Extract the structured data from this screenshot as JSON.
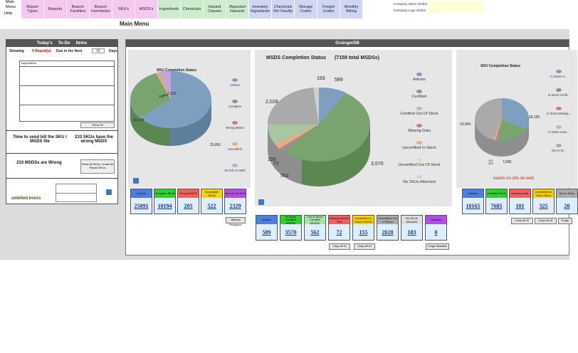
{
  "nav": {
    "main_menu": "Main Menu",
    "help": "Help",
    "tabs": [
      {
        "label": "Report Types",
        "color": "#f4c8ef"
      },
      {
        "label": "Reports",
        "color": "#f4c8ef"
      },
      {
        "label": "Branch Facilities",
        "color": "#f4c8ef"
      },
      {
        "label": "Branch Inventories",
        "color": "#f4c8ef"
      },
      {
        "label": "SKU's",
        "color": "#f4c8ef"
      },
      {
        "label": "MSDS's",
        "color": "#f4c8ef"
      },
      {
        "label": "Ingredients",
        "color": "#cdeccd"
      },
      {
        "label": "Chemicals",
        "color": "#cdeccd"
      },
      {
        "label": "Hazard Classes",
        "color": "#cdeccd"
      },
      {
        "label": "Reported Hazards",
        "color": "#cdeccd"
      },
      {
        "label": "Inventory Ingredients",
        "color": "#cfd6f4"
      },
      {
        "label": "Chemicals Per Facility",
        "color": "#cfd6f4"
      },
      {
        "label": "Storage Codes",
        "color": "#cfd6f4"
      },
      {
        "label": "Freight Codes",
        "color": "#cfd6f4"
      },
      {
        "label": "Monthly Billing",
        "color": "#cfd6f4"
      }
    ]
  },
  "company": {
    "name_label": "Company Name Global",
    "logo_label": "Company Logo Global"
  },
  "page_title": "Main Menu",
  "todo": {
    "header": [
      "Today's",
      "To-Do",
      "Items"
    ],
    "showing_label": "Showing",
    "report_count": "0 Report(s)",
    "due_label": "Due in the Next",
    "days_value": "15",
    "days_label": "Days",
    "table_header": "DaysUntilDue",
    "show_all": "Show All",
    "send_bill": "Time to send bill the SKU / MSDS file",
    "skus_wrong": "233 SKUs have the wrong MSDS",
    "msds_wrong": "233 MSDSs are Wrong",
    "parse_all": "Parse All SKUs, Create All Parsed SKUs",
    "unbilled": "unbilled hours"
  },
  "panel_title": "GraingerDB",
  "sku_chart": {
    "title": "SKU Completion Status",
    "labels": [
      "25,891",
      "10,194",
      "205",
      "522",
      "2,329"
    ],
    "legend": [
      "Articles",
      "Complete",
      "Wrong MSDS",
      "Uncertified",
      "No Info on Web"
    ],
    "legend_colors": [
      "#7e9fbf",
      "#7ba36e",
      "#c07a9e",
      "#e0b27a",
      "#c7a3dc"
    ]
  },
  "msds_chart": {
    "title": "MSDS Completion Status",
    "total": "(7159 total MSDSs)",
    "labels": [
      "589",
      "3,570",
      "562",
      "72",
      "155",
      "2,028",
      "183"
    ],
    "legend": [
      "Articles",
      "Certified",
      "Certified Out Of Stock",
      "Missing Data",
      "Uncertified In Stock",
      "Uncertified Out Of Stock",
      "No SKUs Attached"
    ],
    "legend_colors": [
      "#7e9fbf",
      "#7ba36e",
      "#a8c7a0",
      "#c07a9e",
      "#e0b27a",
      "#f0d9a8",
      "#d0d0d0"
    ]
  },
  "sku_chart2": {
    "title": "SKU Completion Status",
    "labels": [
      "18,165",
      "20,964",
      "7,685",
      "101",
      "325"
    ],
    "legend": [
      "In Stock Ar...",
      "In Stock Certifi...",
      "In Stock Missing...",
      "In Stock Unce...",
      "Not In St..."
    ],
    "legend_colors": [
      "#7e9fbf",
      "#7ba36e",
      "#c07a9e",
      "#e0b27a",
      "#aaaaaa"
    ],
    "warning": "needs no info on web"
  },
  "kpi_sku": [
    {
      "label": "Articles",
      "value": "25891",
      "color": "#4a7fe0"
    },
    {
      "label": "Complete SKUs",
      "value": "10194",
      "color": "#2ed02e"
    },
    {
      "label": "Wrong MSDS",
      "value": "205",
      "color": "#f06060"
    },
    {
      "label": "Incomplete SKUs",
      "value": "522",
      "color": "#f7d000"
    },
    {
      "label": "No Info On Web",
      "value": "2329",
      "color": "#b34de6"
    }
  ],
  "kpi_msds": [
    {
      "label": "Articles",
      "value": "589",
      "color": "#4a7fe0"
    },
    {
      "label": "In Stock Certified MSDSs",
      "value": "3570",
      "color": "#2ed02e"
    },
    {
      "label": "Out of Stock Certified MSDSs",
      "value": "562",
      "color": "#a5e6a5"
    },
    {
      "label": "Missing Dolphin Text",
      "value": "72",
      "color": "#f06060"
    },
    {
      "label": "Uncertified In Stock MSDSs",
      "value": "155",
      "color": "#f7d000"
    },
    {
      "label": "Uncertified Out of Stock",
      "value": "2028",
      "color": "#aaaaaa"
    },
    {
      "label": "No SKUs Attached",
      "value": "183",
      "color": "#dddddd"
    },
    {
      "label": "Obsolete",
      "value": "0",
      "color": "#b34de6"
    }
  ],
  "kpi_sku2": [
    {
      "label": "Articles",
      "value": "18165",
      "color": "#4a7fe0"
    },
    {
      "label": "Certified SKUs",
      "value": "7685",
      "color": "#2ed02e"
    },
    {
      "label": "Missing Data",
      "value": "101",
      "color": "#f06060"
    },
    {
      "label": "Uncertified In Stock SKUs",
      "value": "325",
      "color": "#f7d000"
    },
    {
      "label": "Not In Stock",
      "value": "20",
      "color": "#aaaaaa"
    }
  ],
  "buttons": {
    "attempt_recapture": "Attempt Recapture",
    "chop_off": "Chop off 10",
    "purge": "Purge Obsolete",
    "purge_short": "Purge"
  }
}
